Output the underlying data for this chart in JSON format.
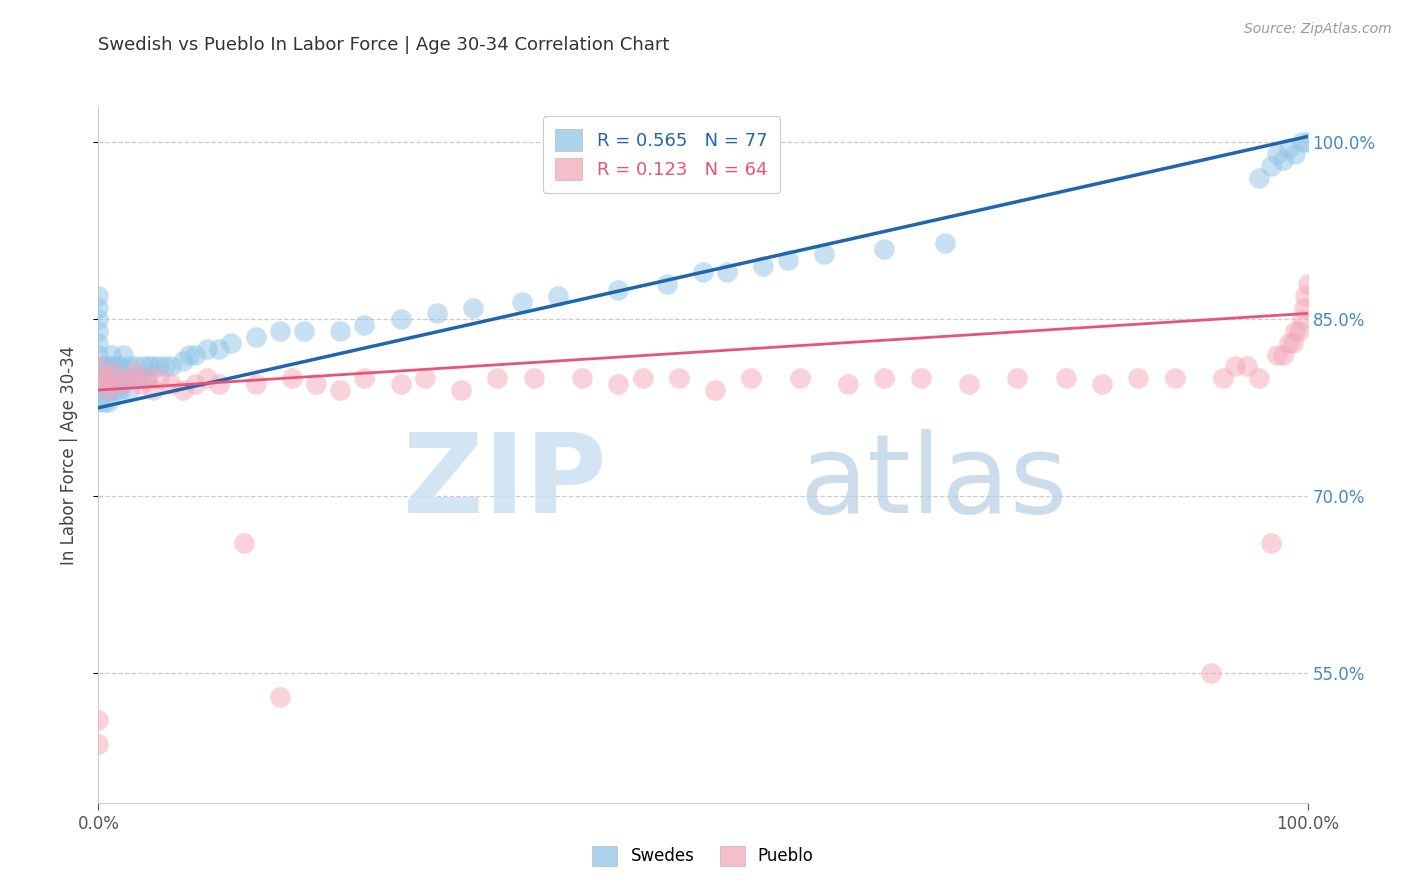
{
  "title": "Swedish vs Pueblo In Labor Force | Age 30-34 Correlation Chart",
  "source_text": "Source: ZipAtlas.com",
  "ylabel": "In Labor Force | Age 30-34",
  "xlim": [
    0.0,
    1.0
  ],
  "ylim": [
    0.44,
    1.03
  ],
  "yticks": [
    0.55,
    0.7,
    0.85,
    1.0
  ],
  "ytick_labels": [
    "55.0%",
    "70.0%",
    "85.0%",
    "100.0%"
  ],
  "swedes_color": "#90c5e8",
  "pueblo_color": "#f4a7b9",
  "swedes_line_color": "#2166ac",
  "pueblo_line_color": "#e8537a",
  "R_swedes": 0.565,
  "N_swedes": 77,
  "R_pueblo": 0.123,
  "N_pueblo": 64,
  "legend_labels_bottom": [
    "Swedes",
    "Pueblo"
  ],
  "sw_line_x0": 0.0,
  "sw_line_y0": 0.775,
  "sw_line_x1": 1.0,
  "sw_line_y1": 1.005,
  "pu_line_x0": 0.0,
  "pu_line_y0": 0.79,
  "pu_line_x1": 1.0,
  "pu_line_y1": 0.855,
  "swedes_x": [
    0.0,
    0.0,
    0.0,
    0.0,
    0.0,
    0.0,
    0.0,
    0.0,
    0.0,
    0.0,
    0.005,
    0.005,
    0.007,
    0.007,
    0.008,
    0.008,
    0.009,
    0.009,
    0.01,
    0.01,
    0.012,
    0.012,
    0.013,
    0.015,
    0.015,
    0.016,
    0.018,
    0.018,
    0.02,
    0.02,
    0.022,
    0.025,
    0.025,
    0.027,
    0.03,
    0.032,
    0.035,
    0.037,
    0.04,
    0.042,
    0.045,
    0.05,
    0.055,
    0.06,
    0.07,
    0.075,
    0.08,
    0.09,
    0.1,
    0.11,
    0.13,
    0.15,
    0.17,
    0.2,
    0.22,
    0.25,
    0.28,
    0.31,
    0.35,
    0.38,
    0.43,
    0.47,
    0.5,
    0.52,
    0.55,
    0.57,
    0.6,
    0.65,
    0.7,
    0.96,
    0.97,
    0.975,
    0.98,
    0.985,
    0.99,
    0.995,
    1.0
  ],
  "swedes_y": [
    0.78,
    0.79,
    0.8,
    0.81,
    0.82,
    0.83,
    0.84,
    0.85,
    0.86,
    0.87,
    0.78,
    0.8,
    0.79,
    0.81,
    0.78,
    0.8,
    0.79,
    0.81,
    0.8,
    0.82,
    0.79,
    0.81,
    0.8,
    0.79,
    0.81,
    0.8,
    0.79,
    0.81,
    0.8,
    0.82,
    0.8,
    0.79,
    0.81,
    0.8,
    0.81,
    0.8,
    0.8,
    0.81,
    0.8,
    0.81,
    0.81,
    0.81,
    0.81,
    0.81,
    0.815,
    0.82,
    0.82,
    0.825,
    0.825,
    0.83,
    0.835,
    0.84,
    0.84,
    0.84,
    0.845,
    0.85,
    0.855,
    0.86,
    0.865,
    0.87,
    0.875,
    0.88,
    0.89,
    0.89,
    0.895,
    0.9,
    0.905,
    0.91,
    0.915,
    0.97,
    0.98,
    0.99,
    0.985,
    0.995,
    0.99,
    1.0,
    1.0
  ],
  "pueblo_x": [
    0.0,
    0.0,
    0.0,
    0.0,
    0.005,
    0.008,
    0.01,
    0.012,
    0.02,
    0.025,
    0.03,
    0.035,
    0.04,
    0.045,
    0.05,
    0.06,
    0.07,
    0.08,
    0.09,
    0.1,
    0.12,
    0.13,
    0.15,
    0.16,
    0.18,
    0.2,
    0.22,
    0.25,
    0.27,
    0.3,
    0.33,
    0.36,
    0.4,
    0.43,
    0.45,
    0.48,
    0.51,
    0.54,
    0.58,
    0.62,
    0.65,
    0.68,
    0.72,
    0.76,
    0.8,
    0.83,
    0.86,
    0.89,
    0.92,
    0.93,
    0.94,
    0.95,
    0.96,
    0.97,
    0.975,
    0.98,
    0.985,
    0.988,
    0.99,
    0.993,
    0.995,
    0.997,
    0.998,
    1.0
  ],
  "pueblo_y": [
    0.49,
    0.51,
    0.8,
    0.81,
    0.795,
    0.79,
    0.8,
    0.805,
    0.795,
    0.8,
    0.805,
    0.795,
    0.8,
    0.79,
    0.8,
    0.795,
    0.79,
    0.795,
    0.8,
    0.795,
    0.66,
    0.795,
    0.53,
    0.8,
    0.795,
    0.79,
    0.8,
    0.795,
    0.8,
    0.79,
    0.8,
    0.8,
    0.8,
    0.795,
    0.8,
    0.8,
    0.79,
    0.8,
    0.8,
    0.795,
    0.8,
    0.8,
    0.795,
    0.8,
    0.8,
    0.795,
    0.8,
    0.8,
    0.55,
    0.8,
    0.81,
    0.81,
    0.8,
    0.66,
    0.82,
    0.82,
    0.83,
    0.83,
    0.84,
    0.84,
    0.85,
    0.86,
    0.87,
    0.88
  ]
}
